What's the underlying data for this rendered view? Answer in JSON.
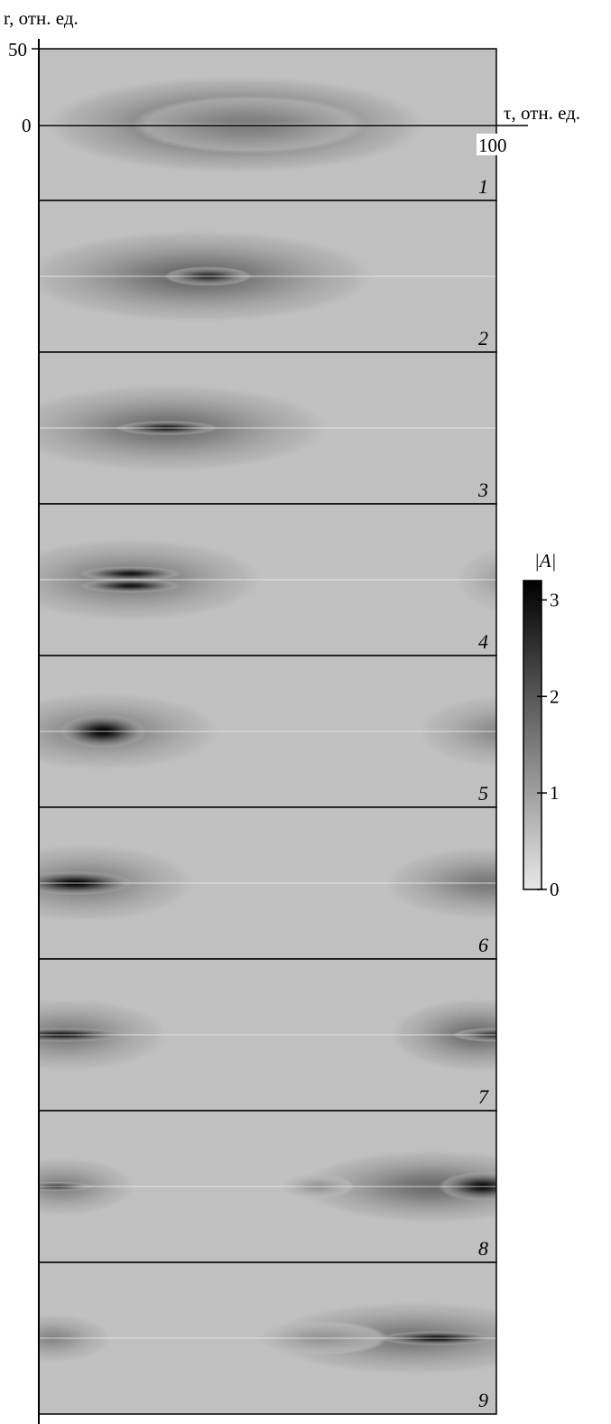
{
  "chart_data": {
    "type": "heatmap",
    "y_axis": {
      "label": "r, отн. ед.",
      "ticks": [
        "50",
        "0"
      ],
      "range": [
        -50,
        50
      ]
    },
    "x_axis": {
      "label": "τ, отн. ед.",
      "ticks": [
        "100"
      ],
      "range": [
        0,
        100
      ]
    },
    "colorbar": {
      "title": "|A|",
      "range": [
        0,
        3.2
      ],
      "ticks": [
        "3",
        "2",
        "1",
        "0"
      ],
      "tick_values": [
        3,
        2,
        1,
        0
      ],
      "colors": [
        "#e8e8e8",
        "#000000"
      ]
    },
    "panels": [
      {
        "label": "1",
        "background": 0.55,
        "blobs": [
          {
            "tau": 43,
            "r": 0,
            "sr": 20,
            "st": 26,
            "a": 1.6
          },
          {
            "tau": 46,
            "r": 0,
            "sr": 12,
            "st": 16,
            "a": 0.9
          }
        ]
      },
      {
        "label": "2",
        "background": 0.55,
        "blobs": [
          {
            "tau": 35,
            "r": 0,
            "sr": 19,
            "st": 24,
            "a": 1.3
          },
          {
            "tau": 37,
            "r": 0,
            "sr": 4,
            "st": 6,
            "a": 2.1
          }
        ]
      },
      {
        "label": "3",
        "background": 0.55,
        "blobs": [
          {
            "tau": 28,
            "r": 0,
            "sr": 18,
            "st": 22,
            "a": 1.2
          },
          {
            "tau": 28,
            "r": 0,
            "sr": 3,
            "st": 7,
            "a": 2.4
          }
        ]
      },
      {
        "label": "4",
        "background": 0.55,
        "blobs": [
          {
            "tau": 20,
            "r": 0,
            "sr": 17,
            "st": 18,
            "a": 1.1
          },
          {
            "tau": 20,
            "r": 4,
            "sr": 3,
            "st": 7,
            "a": 2.4
          },
          {
            "tau": 20,
            "r": -4,
            "sr": 3,
            "st": 7,
            "a": 2.4
          },
          {
            "tau": 104,
            "r": 0,
            "sr": 14,
            "st": 8,
            "a": 0.6
          }
        ]
      },
      {
        "label": "5",
        "background": 0.55,
        "blobs": [
          {
            "tau": 14,
            "r": 0,
            "sr": 16,
            "st": 16,
            "a": 1.0
          },
          {
            "tau": 14,
            "r": 0,
            "sr": 7,
            "st": 6,
            "a": 2.7
          },
          {
            "tau": 102,
            "r": 0,
            "sr": 15,
            "st": 12,
            "a": 0.8
          }
        ]
      },
      {
        "label": "6",
        "background": 0.55,
        "blobs": [
          {
            "tau": 10,
            "r": 0,
            "sr": 16,
            "st": 15,
            "a": 1.0
          },
          {
            "tau": 8,
            "r": 0,
            "sr": 5,
            "st": 8,
            "a": 2.7
          },
          {
            "tau": 98,
            "r": 0,
            "sr": 15,
            "st": 14,
            "a": 1.0
          }
        ]
      },
      {
        "label": "7",
        "background": 0.55,
        "blobs": [
          {
            "tau": 6,
            "r": 0,
            "sr": 15,
            "st": 14,
            "a": 1.0
          },
          {
            "tau": 5,
            "r": 0,
            "sr": 3,
            "st": 9,
            "a": 2.5
          },
          {
            "tau": 96,
            "r": 0,
            "sr": 15,
            "st": 12,
            "a": 1.2
          },
          {
            "tau": 100,
            "r": 0,
            "sr": 3,
            "st": 6,
            "a": 2.0
          }
        ]
      },
      {
        "label": "8",
        "background": 0.55,
        "blobs": [
          {
            "tau": 5,
            "r": 0,
            "sr": 12,
            "st": 10,
            "a": 0.9
          },
          {
            "tau": 4,
            "r": 0,
            "sr": 2,
            "st": 5,
            "a": 2.0
          },
          {
            "tau": 86,
            "r": 0,
            "sr": 15,
            "st": 18,
            "a": 1.2
          },
          {
            "tau": 97,
            "r": 0,
            "sr": 6,
            "st": 6,
            "a": 2.6
          },
          {
            "tau": 61,
            "r": 0,
            "sr": 5,
            "st": 5,
            "a": 0.6
          }
        ]
      },
      {
        "label": "9",
        "background": 0.55,
        "blobs": [
          {
            "tau": 3,
            "r": 0,
            "sr": 10,
            "st": 8,
            "a": 0.8
          },
          {
            "tau": 82,
            "r": 0,
            "sr": 15,
            "st": 20,
            "a": 1.1
          },
          {
            "tau": 87,
            "r": 0,
            "sr": 3,
            "st": 8,
            "a": 2.6
          },
          {
            "tau": 62,
            "r": 0,
            "sr": 7,
            "st": 9,
            "a": 0.6
          }
        ]
      }
    ]
  }
}
